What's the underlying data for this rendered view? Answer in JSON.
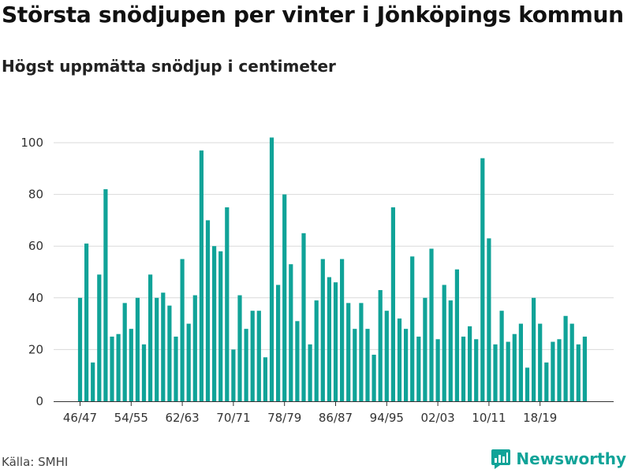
{
  "title": "Största snödjupen per vinter i Jönköpings kommun",
  "subtitle": "Högst uppmätta snödjup i centimeter",
  "source": "Källa: SMHI",
  "brand": "Newsworthy",
  "brand_icon": "newsworthy-logo-icon",
  "colors": {
    "bar": "#10a398",
    "grid": "#d9d9d9",
    "axis": "#333333"
  },
  "chart_data": {
    "type": "bar",
    "title": "Största snödjupen per vinter i Jönköpings kommun",
    "subtitle": "Högst uppmätta snödjup i centimeter",
    "xlabel": "",
    "ylabel": "",
    "ylim": [
      0,
      100
    ],
    "yticks": [
      0,
      20,
      40,
      60,
      80,
      100
    ],
    "grid": true,
    "legend": "none",
    "categories": [
      "46/47",
      "47/48",
      "48/49",
      "49/50",
      "50/51",
      "51/52",
      "52/53",
      "53/54",
      "54/55",
      "55/56",
      "56/57",
      "57/58",
      "58/59",
      "59/60",
      "60/61",
      "61/62",
      "62/63",
      "63/64",
      "64/65",
      "65/66",
      "66/67",
      "67/68",
      "68/69",
      "69/70",
      "70/71",
      "71/72",
      "72/73",
      "73/74",
      "74/75",
      "75/76",
      "76/77",
      "77/78",
      "78/79",
      "79/80",
      "80/81",
      "81/82",
      "82/83",
      "83/84",
      "84/85",
      "85/86",
      "86/87",
      "87/88",
      "88/89",
      "89/90",
      "90/91",
      "91/92",
      "92/93",
      "93/94",
      "94/95",
      "95/96",
      "96/97",
      "97/98",
      "98/99",
      "99/00",
      "00/01",
      "01/02",
      "02/03",
      "03/04",
      "04/05",
      "05/06",
      "06/07",
      "07/08",
      "08/09",
      "09/10",
      "10/11",
      "11/12",
      "12/13",
      "13/14",
      "14/15",
      "15/16",
      "16/17",
      "17/18",
      "18/19",
      "19/20",
      "20/21",
      "21/22",
      "22/23",
      "23/24",
      "24/25",
      "25/26"
    ],
    "xtick_labels": [
      "46/47",
      "54/55",
      "62/63",
      "70/71",
      "78/79",
      "86/87",
      "94/95",
      "02/03",
      "10/11",
      "18/19"
    ],
    "values": [
      40,
      61,
      15,
      49,
      82,
      25,
      26,
      38,
      28,
      40,
      22,
      49,
      40,
      42,
      37,
      25,
      55,
      30,
      41,
      97,
      70,
      60,
      58,
      75,
      20,
      41,
      28,
      35,
      35,
      17,
      102,
      45,
      80,
      53,
      31,
      65,
      22,
      39,
      55,
      48,
      46,
      55,
      38,
      28,
      38,
      28,
      18,
      43,
      35,
      75,
      32,
      28,
      56,
      25,
      40,
      59,
      24,
      45,
      39,
      51,
      25,
      29,
      24,
      94,
      63,
      22,
      35,
      23,
      26,
      30,
      13,
      40,
      30,
      15,
      23,
      24,
      33,
      30,
      22,
      25
    ]
  }
}
